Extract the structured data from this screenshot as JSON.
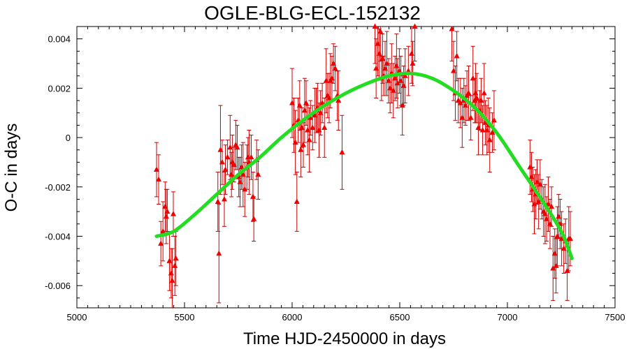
{
  "chart_data": {
    "type": "scatter",
    "title": "OGLE-BLG-ECL-152132",
    "xlabel": "Time HJD-2450000 in days",
    "ylabel": "O-C in days",
    "xlim": [
      5000,
      7500
    ],
    "ylim": [
      -0.0069,
      0.0045
    ],
    "xticks": [
      5000,
      5500,
      6000,
      6500,
      7000,
      7500
    ],
    "yticks": [
      -0.006,
      -0.004,
      -0.002,
      0,
      0.002,
      0.004
    ],
    "ytick_labels": [
      "-0.006",
      "-0.004",
      "-0.002",
      "0",
      "0.002",
      "0.004"
    ],
    "grid": false,
    "colors": {
      "points": "#ee0000",
      "errorbars": "#cc0000",
      "fit": "#22dd22"
    },
    "series": [
      {
        "kind": "points-with-errorbars",
        "points": [
          [
            5370,
            -0.0013,
            0.0011
          ],
          [
            5380,
            -0.0017,
            0.001
          ],
          [
            5390,
            -0.0043,
            0.0009
          ],
          [
            5400,
            -0.0038,
            0.0012
          ],
          [
            5410,
            -0.0028,
            0.001
          ],
          [
            5415,
            -0.0032,
            0.0011
          ],
          [
            5420,
            -0.003,
            0.0009
          ],
          [
            5430,
            -0.005,
            0.0012
          ],
          [
            5438,
            -0.0055,
            0.001
          ],
          [
            5443,
            -0.0058,
            0.0013
          ],
          [
            5448,
            -0.0031,
            0.0009
          ],
          [
            5455,
            -0.0052,
            0.0012
          ],
          [
            5460,
            -0.0049,
            0.0011
          ],
          [
            5655,
            -0.0026,
            0.0012
          ],
          [
            5660,
            -0.0047,
            0.002
          ],
          [
            5667,
            -0.0005,
            0.0018
          ],
          [
            5675,
            -0.001,
            0.0009
          ],
          [
            5685,
            -0.0025,
            0.0011
          ],
          [
            5690,
            -0.0013,
            0.001
          ],
          [
            5700,
            -0.0008,
            0.0007
          ],
          [
            5712,
            -0.0004,
            0.0013
          ],
          [
            5718,
            -0.0015,
            0.0009
          ],
          [
            5722,
            -0.001,
            0.0011
          ],
          [
            5730,
            -0.0011,
            0.0007
          ],
          [
            5738,
            -0.0003,
            0.001
          ],
          [
            5745,
            -0.0004,
            0.0009
          ],
          [
            5752,
            -0.0016,
            0.0008
          ],
          [
            5758,
            -0.0018,
            0.001
          ],
          [
            5765,
            -0.0012,
            0.0009
          ],
          [
            5772,
            -0.0015,
            0.0013
          ],
          [
            5780,
            -0.0021,
            0.0011
          ],
          [
            5790,
            -0.0012,
            0.0009
          ],
          [
            5795,
            -0.0008,
            0.0008
          ],
          [
            5800,
            -0.001,
            0.0013
          ],
          [
            5810,
            -0.0008,
            0.0009
          ],
          [
            5818,
            -0.0024,
            0.001
          ],
          [
            5822,
            -0.0033,
            0.0009
          ],
          [
            5835,
            -0.0009,
            0.0008
          ],
          [
            5842,
            -0.0015,
            0.001
          ],
          [
            6000,
            0.0014,
            0.0014
          ],
          [
            6008,
            0.0005,
            0.0011
          ],
          [
            6015,
            -0.0002,
            0.0013
          ],
          [
            6022,
            -0.0026,
            0.0012
          ],
          [
            6028,
            0.0007,
            0.0009
          ],
          [
            6035,
            0.0013,
            0.001
          ],
          [
            6040,
            -0.0005,
            0.0011
          ],
          [
            6045,
            0.0004,
            0.0008
          ],
          [
            6052,
            -0.0003,
            0.0009
          ],
          [
            6058,
            0.0011,
            0.0013
          ],
          [
            6065,
            0.0014,
            0.0009
          ],
          [
            6072,
            0.0003,
            0.001
          ],
          [
            6080,
            -0.0001,
            0.0013
          ],
          [
            6085,
            0.0008,
            0.0007
          ],
          [
            6095,
            0.0004,
            0.0009
          ],
          [
            6105,
            0.0009,
            0.0011
          ],
          [
            6112,
            0.0011,
            0.0009
          ],
          [
            6118,
            0.0012,
            0.001
          ],
          [
            6125,
            0.0003,
            0.0011
          ],
          [
            6132,
            0.001,
            0.0009
          ],
          [
            6140,
            0.0014,
            0.0008
          ],
          [
            6150,
            0.0004,
            0.0012
          ],
          [
            6158,
            0.0023,
            0.0013
          ],
          [
            6165,
            0.0017,
            0.0009
          ],
          [
            6172,
            0.0016,
            0.001
          ],
          [
            6178,
            0.0023,
            0.0011
          ],
          [
            6185,
            0.0024,
            0.0009
          ],
          [
            6192,
            0.003,
            0.0008
          ],
          [
            6200,
            0.0028,
            0.0009
          ],
          [
            6210,
            0.0017,
            0.001
          ],
          [
            6215,
            0.0015,
            0.0012
          ],
          [
            6232,
            -0.0006,
            0.0015
          ],
          [
            6385,
            0.0045,
            0.0015
          ],
          [
            6390,
            0.0028,
            0.0012
          ],
          [
            6398,
            0.0038,
            0.0013
          ],
          [
            6405,
            0.0034,
            0.001
          ],
          [
            6410,
            0.0043,
            0.0012
          ],
          [
            6415,
            0.0024,
            0.0009
          ],
          [
            6420,
            0.0032,
            0.001
          ],
          [
            6425,
            0.0025,
            0.0008
          ],
          [
            6432,
            0.0028,
            0.0011
          ],
          [
            6440,
            0.003,
            0.0013
          ],
          [
            6448,
            0.0023,
            0.0009
          ],
          [
            6455,
            0.002,
            0.001
          ],
          [
            6462,
            0.0026,
            0.0012
          ],
          [
            6470,
            0.0019,
            0.0011
          ],
          [
            6478,
            0.0024,
            0.0009
          ],
          [
            6485,
            0.0029,
            0.0013
          ],
          [
            6490,
            0.0022,
            0.001
          ],
          [
            6498,
            0.0027,
            0.0009
          ],
          [
            6505,
            0.0023,
            0.001
          ],
          [
            6512,
            0.0013,
            0.0012
          ],
          [
            6518,
            0.0021,
            0.0008
          ],
          [
            6525,
            0.0025,
            0.0011
          ],
          [
            6540,
            0.0027,
            0.001
          ],
          [
            6555,
            0.0034,
            0.0012
          ],
          [
            6560,
            0.003,
            0.0009
          ],
          [
            6570,
            0.0045,
            0.0014
          ],
          [
            6742,
            0.0044,
            0.0013
          ],
          [
            6750,
            0.0027,
            0.0012
          ],
          [
            6758,
            0.0018,
            0.0011
          ],
          [
            6765,
            0.0033,
            0.001
          ],
          [
            6772,
            0.0015,
            0.0009
          ],
          [
            6782,
            0.0014,
            0.001
          ],
          [
            6790,
            0.0008,
            0.0012
          ],
          [
            6798,
            0.0015,
            0.0009
          ],
          [
            6805,
            0.0013,
            0.0008
          ],
          [
            6812,
            0.0017,
            0.001
          ],
          [
            6820,
            0.0018,
            0.0011
          ],
          [
            6830,
            0.0008,
            0.0009
          ],
          [
            6840,
            0.0024,
            0.0013
          ],
          [
            6848,
            0.0015,
            0.0009
          ],
          [
            6852,
            0.0018,
            0.0012
          ],
          [
            6858,
            0.0016,
            0.001
          ],
          [
            6865,
            0.0004,
            0.0011
          ],
          [
            6872,
            0.0011,
            0.0008
          ],
          [
            6878,
            0.0015,
            0.0009
          ],
          [
            6885,
            0.0003,
            0.001
          ],
          [
            6892,
            0.0018,
            0.0012
          ],
          [
            6898,
            0.0006,
            0.0009
          ],
          [
            6905,
            0.0003,
            0.001
          ],
          [
            6912,
            0.0005,
            0.0011
          ],
          [
            6918,
            -0.0001,
            0.0013
          ],
          [
            6930,
            0.0002,
            0.0008
          ],
          [
            6938,
            0.0007,
            0.0012
          ],
          [
            7105,
            -0.0012,
            0.0011
          ],
          [
            7112,
            -0.0016,
            0.001
          ],
          [
            7118,
            -0.0021,
            0.0009
          ],
          [
            7125,
            -0.0027,
            0.0012
          ],
          [
            7132,
            -0.0023,
            0.001
          ],
          [
            7138,
            -0.0018,
            0.0009
          ],
          [
            7145,
            -0.0026,
            0.0011
          ],
          [
            7152,
            -0.0019,
            0.001
          ],
          [
            7160,
            -0.0025,
            0.0008
          ],
          [
            7168,
            -0.003,
            0.001
          ],
          [
            7175,
            -0.0031,
            0.0012
          ],
          [
            7182,
            -0.0033,
            0.0009
          ],
          [
            7190,
            -0.0027,
            0.0011
          ],
          [
            7198,
            -0.0035,
            0.001
          ],
          [
            7205,
            -0.0028,
            0.0008
          ],
          [
            7212,
            -0.0053,
            0.0013
          ],
          [
            7220,
            -0.0047,
            0.001
          ],
          [
            7226,
            -0.0052,
            0.0011
          ],
          [
            7232,
            -0.004,
            0.0012
          ],
          [
            7238,
            -0.0032,
            0.0009
          ],
          [
            7245,
            -0.0035,
            0.001
          ],
          [
            7252,
            -0.0041,
            0.0011
          ],
          [
            7262,
            -0.0045,
            0.001
          ],
          [
            7270,
            -0.0042,
            0.0009
          ],
          [
            7278,
            -0.0054,
            0.0012
          ],
          [
            7285,
            -0.0041,
            0.0013
          ],
          [
            7292,
            -0.0041,
            0.0011
          ]
        ]
      },
      {
        "kind": "fit-curve",
        "x": [
          5370,
          5450,
          5550,
          5650,
          5750,
          5850,
          5950,
          6050,
          6150,
          6250,
          6350,
          6450,
          6550,
          6650,
          6750,
          6850,
          6950,
          7050,
          7150,
          7250,
          7300
        ],
        "y": [
          -0.004,
          -0.0038,
          -0.0031,
          -0.0023,
          -0.0015,
          -0.0008,
          0.0,
          0.0007,
          0.0013,
          0.0018,
          0.0022,
          0.0025,
          0.0026,
          0.0024,
          0.0019,
          0.0012,
          0.0002,
          -0.0011,
          -0.0024,
          -0.0038,
          -0.0049
        ]
      }
    ]
  }
}
